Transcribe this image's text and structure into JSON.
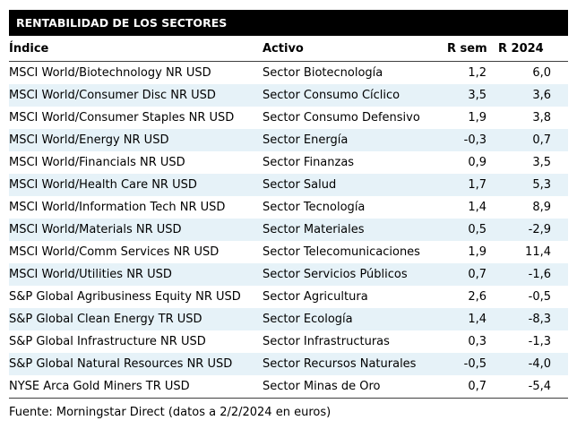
{
  "chart_data": {
    "type": "table",
    "title": "RENTABILIDAD DE LOS SECTORES",
    "columns": [
      "Índice",
      "Activo",
      "R sem",
      "R 2024"
    ],
    "rows": [
      [
        "MSCI World/Biotechnology NR USD",
        "Sector Biotecnología",
        "1,2",
        "6,0"
      ],
      [
        "MSCI World/Consumer Disc NR USD",
        "Sector Consumo Cíclico",
        "3,5",
        "3,6"
      ],
      [
        "MSCI World/Consumer Staples NR USD",
        "Sector Consumo Defensivo",
        "1,9",
        "3,8"
      ],
      [
        "MSCI World/Energy NR USD",
        "Sector Energía",
        "-0,3",
        "0,7"
      ],
      [
        "MSCI World/Financials NR USD",
        "Sector Finanzas",
        "0,9",
        "3,5"
      ],
      [
        "MSCI World/Health Care NR USD",
        "Sector Salud",
        "1,7",
        "5,3"
      ],
      [
        "MSCI World/Information Tech NR USD",
        "Sector Tecnología",
        "1,4",
        "8,9"
      ],
      [
        "MSCI World/Materials NR USD",
        "Sector Materiales",
        "0,5",
        "-2,9"
      ],
      [
        "MSCI World/Comm Services NR USD",
        "Sector Telecomunicaciones",
        "1,9",
        "11,4"
      ],
      [
        "MSCI World/Utilities NR USD",
        "Sector Servicios Públicos",
        "0,7",
        "-1,6"
      ],
      [
        "S&P Global Agribusiness Equity NR USD",
        "Sector Agricultura",
        "2,6",
        "-0,5"
      ],
      [
        "S&P Global Clean Energy TR USD",
        "Sector Ecología",
        "1,4",
        "-8,3"
      ],
      [
        "S&P Global Infrastructure NR USD",
        "Sector Infrastructuras",
        "0,3",
        "-1,3"
      ],
      [
        "S&P Global Natural Resources NR USD",
        "Sector Recursos Naturales",
        "-0,5",
        "-4,0"
      ],
      [
        "NYSE Arca Gold Miners TR USD",
        "Sector Minas de Oro",
        "0,7",
        "-5,4"
      ]
    ],
    "source": "Fuente: Morningstar Direct (datos a 2/2/2024 en euros)",
    "legend_position": "none",
    "grid": "off",
    "colors": {
      "header_bg": "#000000",
      "header_text": "#ffffff",
      "stripe": "#e6f2f8",
      "rule": "#3f3f3f",
      "body_text": "#000000"
    }
  }
}
